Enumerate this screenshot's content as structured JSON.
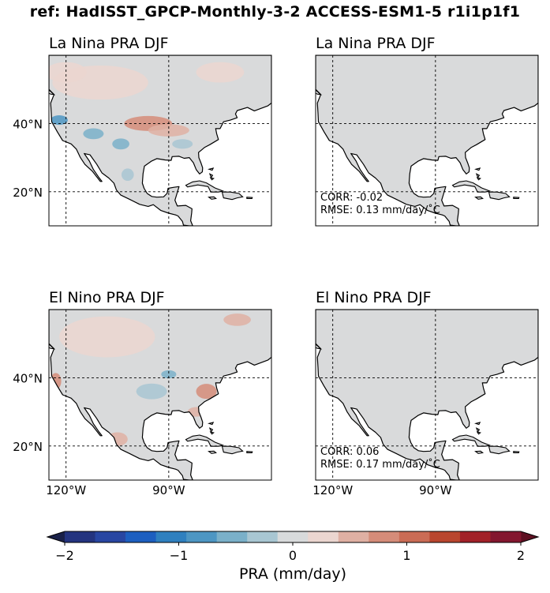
{
  "figure": {
    "title": "ref: HadISST_GPCP-Monthly-3-2 ACCESS-ESM1-5 r1i1p1f1"
  },
  "colors": {
    "land": "#d9dadb",
    "ocean": "#ffffff",
    "coast": "#000000",
    "colorbar": [
      "#1a2149",
      "#24347f",
      "#2846a2",
      "#1d5fc0",
      "#2f80bf",
      "#4d96c3",
      "#7ab0c9",
      "#a8c6d2",
      "#d8dadb",
      "#ebd6d0",
      "#dfb0a3",
      "#d58c79",
      "#ca6c55",
      "#b9462e",
      "#a22128",
      "#83172f",
      "#5e1022"
    ]
  },
  "chart_data": [
    {
      "type": "heatmap",
      "title": "La Nina PRA DJF",
      "ytick_labels": [
        "40°N",
        "20°N"
      ],
      "xtick_labels": [],
      "stats": [],
      "anomalies": [
        {
          "lon": -110,
          "lat": 52,
          "rx": 14,
          "ry": 5,
          "value": 0.35
        },
        {
          "lon": -96,
          "lat": 40,
          "rx": 7,
          "ry": 2.2,
          "value": 0.7
        },
        {
          "lon": -90,
          "lat": 38,
          "rx": 6,
          "ry": 1.8,
          "value": 0.6
        },
        {
          "lon": -120,
          "lat": 55,
          "rx": 6,
          "ry": 3,
          "value": 0.3
        },
        {
          "lon": -122,
          "lat": 41,
          "rx": 2.5,
          "ry": 1.4,
          "value": -0.9
        },
        {
          "lon": -112,
          "lat": 37,
          "rx": 3,
          "ry": 1.6,
          "value": -0.5
        },
        {
          "lon": -104,
          "lat": 34,
          "rx": 2.5,
          "ry": 1.6,
          "value": -0.5
        },
        {
          "lon": -102,
          "lat": 25,
          "rx": 1.8,
          "ry": 1.8,
          "value": -0.35
        },
        {
          "lon": -86,
          "lat": 34,
          "rx": 3,
          "ry": 1.4,
          "value": -0.35
        },
        {
          "lon": -75,
          "lat": 55,
          "rx": 7,
          "ry": 3,
          "value": 0.25
        }
      ]
    },
    {
      "type": "heatmap",
      "title": "La Nina PRA DJF",
      "ytick_labels": [],
      "xtick_labels": [],
      "stats": [
        "CORR: -0.02",
        "RMSE: 0.13 mm/day/˚C"
      ],
      "anomalies": []
    },
    {
      "type": "heatmap",
      "title": "El Nino PRA DJF",
      "ytick_labels": [
        "40°N",
        "20°N"
      ],
      "xtick_labels": [
        "120°W",
        "90°W"
      ],
      "stats": [],
      "anomalies": [
        {
          "lon": -108,
          "lat": 52,
          "rx": 14,
          "ry": 6,
          "value": 0.3
        },
        {
          "lon": -123,
          "lat": 39,
          "rx": 1.6,
          "ry": 2.4,
          "value": 0.9
        },
        {
          "lon": -79,
          "lat": 36,
          "rx": 3,
          "ry": 2.2,
          "value": 0.75
        },
        {
          "lon": -82,
          "lat": 30,
          "rx": 2.5,
          "ry": 1.4,
          "value": 0.55
        },
        {
          "lon": -105,
          "lat": 22,
          "rx": 3,
          "ry": 2,
          "value": 0.45
        },
        {
          "lon": -95,
          "lat": 36,
          "rx": 4.5,
          "ry": 2.3,
          "value": -0.4
        },
        {
          "lon": -90,
          "lat": 41,
          "rx": 2.2,
          "ry": 1.2,
          "value": -0.45
        },
        {
          "lon": -70,
          "lat": 57,
          "rx": 4,
          "ry": 1.8,
          "value": 0.45
        }
      ]
    },
    {
      "type": "heatmap",
      "title": "El Nino PRA DJF",
      "ytick_labels": [],
      "xtick_labels": [
        "120°W",
        "90°W"
      ],
      "stats": [
        "CORR: 0.06",
        "RMSE: 0.17 mm/day/˚C"
      ],
      "anomalies": []
    }
  ],
  "map_extent": {
    "lon_min": -125,
    "lon_max": -60,
    "lat_min": 10,
    "lat_max": 60
  },
  "gridlines": {
    "lon": [
      -120,
      -90
    ],
    "lat": [
      40,
      20
    ]
  },
  "colorbar": {
    "range": [
      -2,
      2
    ],
    "ticks": [
      "−2",
      "−1",
      "0",
      "1",
      "2"
    ],
    "label": "PRA (mm/day)"
  }
}
